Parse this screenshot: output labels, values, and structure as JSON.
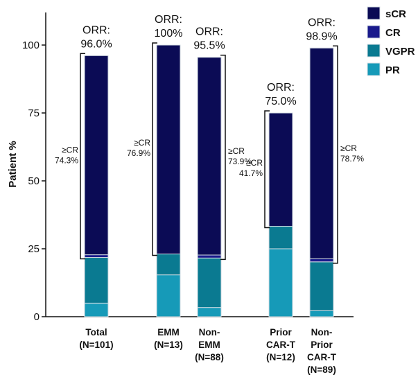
{
  "chart_data": {
    "type": "bar",
    "stacked": true,
    "ylabel": "Patient %",
    "ylim": [
      0,
      100
    ],
    "yticks": [
      0,
      25,
      50,
      75,
      100
    ],
    "grid": false,
    "legend_position": "top-right",
    "colors": {
      "PR": "#169ab8",
      "VGPR": "#0a7a91",
      "CR": "#1a1a8c",
      "sCR": "#0b0b55",
      "bar_edge": "#d6dde3",
      "bracket": "#111111"
    },
    "legend": [
      "sCR",
      "CR",
      "VGPR",
      "PR"
    ],
    "categories": [
      [
        "Total",
        "(N=101)"
      ],
      [
        "EMM",
        "(N=13)"
      ],
      [
        "Non-",
        "EMM",
        "(N=88)"
      ],
      [
        "Prior",
        "CAR-T",
        "(N=12)"
      ],
      [
        "Non-",
        "Prior",
        "CAR-T",
        "(N=89)"
      ]
    ],
    "series": [
      {
        "name": "PR",
        "values": [
          5.0,
          15.4,
          3.4,
          25.0,
          2.2
        ]
      },
      {
        "name": "VGPR",
        "values": [
          16.8,
          7.7,
          18.2,
          8.3,
          18.0
        ]
      },
      {
        "name": "CR",
        "values": [
          1.0,
          0.0,
          1.1,
          0.0,
          1.1
        ]
      },
      {
        "name": "sCR",
        "values": [
          73.3,
          76.9,
          72.8,
          41.7,
          77.6
        ]
      }
    ],
    "orr": [
      {
        "label": "ORR:",
        "value": "96.0%"
      },
      {
        "label": "ORR:",
        "value": "100%"
      },
      {
        "label": "ORR:",
        "value": "95.5%"
      },
      {
        "label": "ORR:",
        "value": "75.0%"
      },
      {
        "label": "ORR:",
        "value": "98.9%"
      }
    ],
    "cr_or_better": [
      {
        "label": "≥CR",
        "value": "74.3%",
        "side": "left"
      },
      {
        "label": "≥CR",
        "value": "76.9%",
        "side": "left"
      },
      {
        "label": "≥CR",
        "value": "73.9%",
        "side": "right"
      },
      {
        "label": "≥CR",
        "value": "41.7%",
        "side": "left"
      },
      {
        "label": "≥CR",
        "value": "78.7%",
        "side": "right"
      }
    ]
  }
}
